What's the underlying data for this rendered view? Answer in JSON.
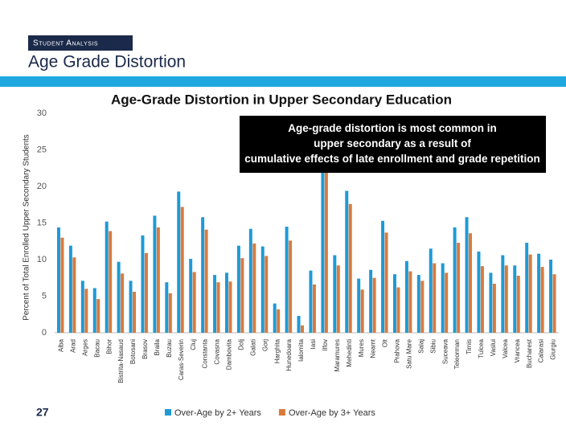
{
  "header": {
    "section": "Student Analysis",
    "title": "Age Grade Distortion"
  },
  "page_number": "27",
  "chart_data": {
    "type": "bar",
    "title": "Age-Grade Distortion in Upper Secondary Education",
    "ylabel": "Percent of Total Enrolled Upper Secondary Students",
    "annotation": "Age-grade distortion is most common in upper secondary as a result of cumulative effects of late enrollment and grade repetition",
    "categories": [
      "Alba",
      "Arad",
      "Arges",
      "Bacau",
      "Bihor",
      "Bistrita-Nasaud",
      "Botosani",
      "Brasov",
      "Braila",
      "Buzau",
      "Caras-Severin",
      "Cluj",
      "Constanta",
      "Covasna",
      "Dambovita",
      "Dolj",
      "Galati",
      "Gorj",
      "Harghita",
      "Hunedoara",
      "Ialomita",
      "Iasi",
      "Ilfov",
      "Maramures",
      "Mehedinti",
      "Mures",
      "Neamt",
      "Olt",
      "Prahova",
      "Satu Mare",
      "Salaj",
      "Sibiu",
      "Suceava",
      "Teleorman",
      "Timis",
      "Tulcea",
      "Vaslui",
      "Valcea",
      "Vrancea",
      "Bucharest",
      "Calarasi",
      "Giurgiu"
    ],
    "series": [
      {
        "name": "Over-Age by 2+ Years",
        "color": "#1e9ad6",
        "values": [
          14.4,
          11.9,
          7.1,
          6.1,
          15.2,
          9.7,
          7.1,
          13.3,
          16.0,
          6.9,
          19.3,
          10.1,
          15.8,
          7.9,
          8.2,
          11.9,
          14.2,
          11.8,
          4.0,
          14.5,
          2.3,
          8.5,
          24.5,
          10.6,
          19.4,
          7.4,
          8.6,
          15.3,
          8.0,
          9.8,
          7.9,
          11.5,
          9.5,
          14.4,
          15.8,
          11.1,
          8.2,
          10.6,
          9.2,
          12.3,
          10.8,
          10.0
        ]
      },
      {
        "name": "Over-Age by 3+ Years",
        "color": "#d97a3c",
        "values": [
          13.0,
          10.3,
          6.0,
          4.6,
          13.9,
          8.1,
          5.6,
          10.9,
          14.4,
          5.4,
          17.2,
          8.3,
          14.1,
          6.9,
          7.0,
          10.2,
          12.2,
          10.5,
          3.2,
          12.6,
          1.0,
          6.6,
          23.0,
          9.2,
          17.6,
          5.9,
          7.5,
          13.7,
          6.2,
          8.4,
          7.1,
          9.5,
          8.2,
          12.3,
          13.6,
          9.1,
          6.7,
          9.2,
          7.8,
          10.7,
          9.0,
          8.0
        ]
      }
    ],
    "ylim": [
      0,
      30
    ],
    "yticks": [
      0,
      5,
      10,
      15,
      20,
      25,
      30
    ],
    "grid": false,
    "legend": "bottom"
  }
}
